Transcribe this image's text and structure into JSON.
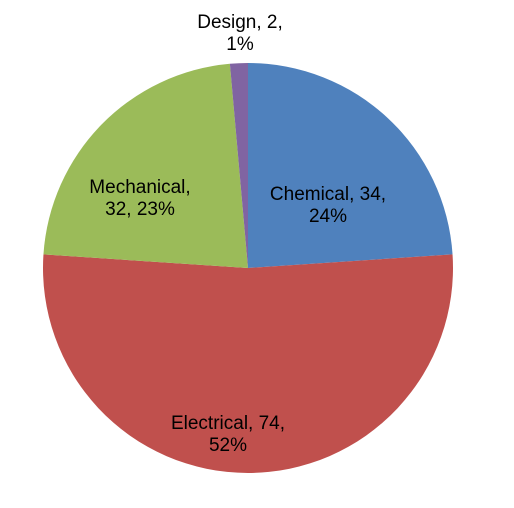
{
  "chart_data": {
    "type": "pie",
    "values": [
      34,
      74,
      32,
      2
    ],
    "value_labels": [
      "Chemical, 34, 24%",
      "Electrical, 74, 52%",
      "Mechanical, 32, 23%",
      "Design, 2, 1%"
    ],
    "colors": [
      "#4f81bd",
      "#c0504d",
      "#9bbb59",
      "#8064a2"
    ]
  }
}
